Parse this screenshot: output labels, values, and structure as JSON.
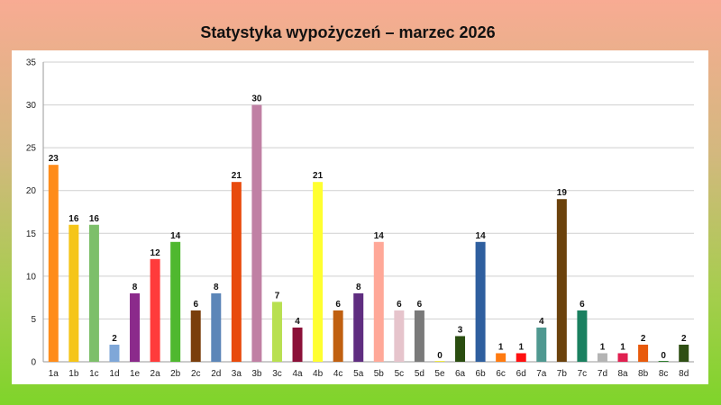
{
  "chart_data": {
    "type": "bar",
    "title": "Statystyka wypożyczeń – marzec 2026",
    "xlabel": "",
    "ylabel": "",
    "ylim": [
      0,
      35
    ],
    "yticks": [
      0,
      5,
      10,
      15,
      20,
      25,
      30,
      35
    ],
    "grid": true,
    "legend": "none",
    "categories": [
      "1a",
      "1b",
      "1c",
      "1d",
      "1e",
      "2a",
      "2b",
      "2c",
      "2d",
      "3a",
      "3b",
      "3c",
      "4a",
      "4b",
      "4c",
      "5a",
      "5b",
      "5c",
      "5d",
      "5e",
      "6a",
      "6b",
      "6c",
      "6d",
      "7a",
      "7b",
      "7c",
      "7d",
      "8a",
      "8b",
      "8c",
      "8d"
    ],
    "values": [
      23,
      16,
      16,
      2,
      8,
      12,
      14,
      6,
      8,
      21,
      30,
      7,
      4,
      21,
      6,
      8,
      14,
      6,
      6,
      0,
      3,
      14,
      1,
      1,
      4,
      19,
      6,
      1,
      1,
      2,
      0,
      2
    ],
    "colors": [
      "#ff8c1a",
      "#f5c518",
      "#7dbf6a",
      "#7fa7d8",
      "#8b2a8b",
      "#ff3b3b",
      "#4fb82f",
      "#7a3e0c",
      "#5c86b8",
      "#e84a0c",
      "#c080a4",
      "#b8e050",
      "#8b1038",
      "#ffff30",
      "#c06010",
      "#5f2d80",
      "#ffa898",
      "#e6c4cc",
      "#7a7a7a",
      "#f0e840",
      "#2a4d10",
      "#2f5f9f",
      "#ff7a10",
      "#ff1010",
      "#4f9890",
      "#6b420c",
      "#1a8060",
      "#b4b4b4",
      "#e02050",
      "#e85a0c",
      "#2f7f2f",
      "#2f4f14"
    ]
  }
}
